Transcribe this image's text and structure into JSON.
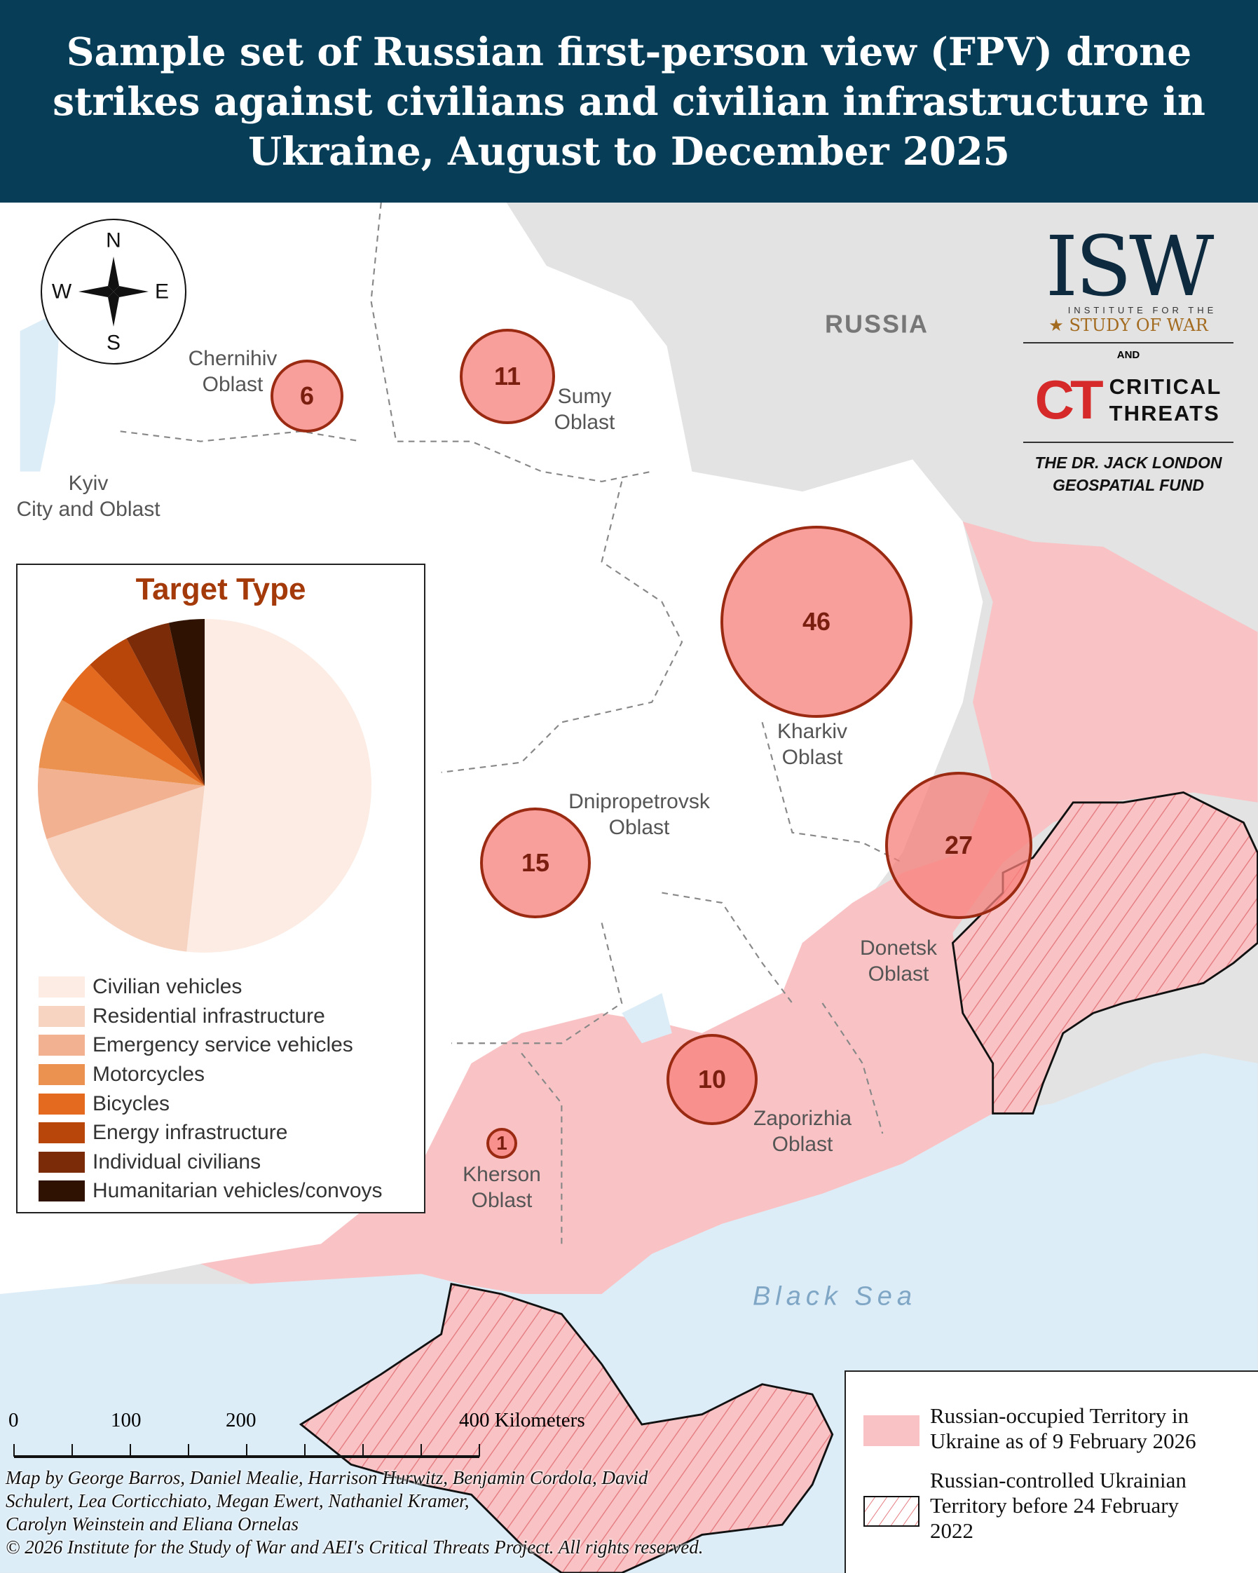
{
  "title": {
    "lines": [
      "Sample set of Russian first-person view (FPV) drone",
      "strikes against civilians and civilian infrastructure in",
      "Ukraine, August to December 2025"
    ]
  },
  "colors": {
    "header_bg": "#073d57",
    "occupied": "#f9c3c5",
    "circle_fill": "#f77f7a",
    "circle_stroke": "#9b2a12",
    "sea": "#dcedf8",
    "russia": "#e3e3e3"
  },
  "compass": {
    "n": "N",
    "s": "S",
    "e": "E",
    "w": "W"
  },
  "map_labels": {
    "russia": "RUSSIA",
    "black_sea": "Black Sea",
    "chernihiv": [
      "Chernihiv",
      "Oblast"
    ],
    "sumy": [
      "Sumy",
      "Oblast"
    ],
    "kyiv": [
      "Kyiv",
      "City and Oblast"
    ],
    "kharkiv": [
      "Kharkiv",
      "Oblast"
    ],
    "dnipro": [
      "Dnipropetrovsk",
      "Oblast"
    ],
    "donetsk": [
      "Donetsk",
      "Oblast"
    ],
    "zaporizhia": [
      "Zaporizhia",
      "Oblast"
    ],
    "kherson": [
      "Kherson",
      "Oblast"
    ]
  },
  "strike_counts": {
    "chernihiv": "6",
    "sumy": "11",
    "kharkiv": "46",
    "dnipro": "15",
    "donetsk": "27",
    "zaporizhia": "10",
    "kherson": "1"
  },
  "logos": {
    "isw": "ISW",
    "isw_sub1": "INSTITUTE FOR THE",
    "isw_sub2": "STUDY OF WAR",
    "and": "AND",
    "ct": "CT",
    "ct_name": [
      "CRITICAL",
      "THREATS"
    ],
    "fund": [
      "THE DR. JACK LONDON",
      "GEOSPATIAL FUND"
    ]
  },
  "chart_data": {
    "type": "pie",
    "title": "Target Type",
    "legend_placement": "below",
    "categories": [
      "Civilian vehicles",
      "Residential infrastructure",
      "Emergency service vehicles",
      "Motorcycles",
      "Bicycles",
      "Energy infrastructure",
      "Individual civilians",
      "Humanitarian vehicles/convoys"
    ],
    "values": [
      60,
      21,
      8,
      8,
      5,
      5,
      5,
      4
    ],
    "colors": [
      "#fcece3",
      "#f7d4c2",
      "#f2b190",
      "#eb9250",
      "#e36a1f",
      "#b8460b",
      "#7b2b08",
      "#2f1201"
    ]
  },
  "scale_bar": {
    "ticks": [
      "0",
      "100",
      "200",
      "400 Kilometers"
    ]
  },
  "credits": [
    "Map by George Barros, Daniel Mealie, Harrison Hurwitz, Benjamin Cordola, David",
    "Schulert, Lea Corticchiato, Megan Ewert, Nathaniel Kramer,",
    "Carolyn Weinstein and Eliana Ornelas",
    "© 2026 Institute for the Study of War and AEI's Critical Threats Project. All rights reserved."
  ],
  "map_legend": {
    "occupied": [
      "Russian-occupied Territory in",
      "Ukraine as of 9 February 2026"
    ],
    "pre2022": [
      "Russian-controlled Ukrainian",
      "Territory before 24 February",
      "2022"
    ]
  }
}
